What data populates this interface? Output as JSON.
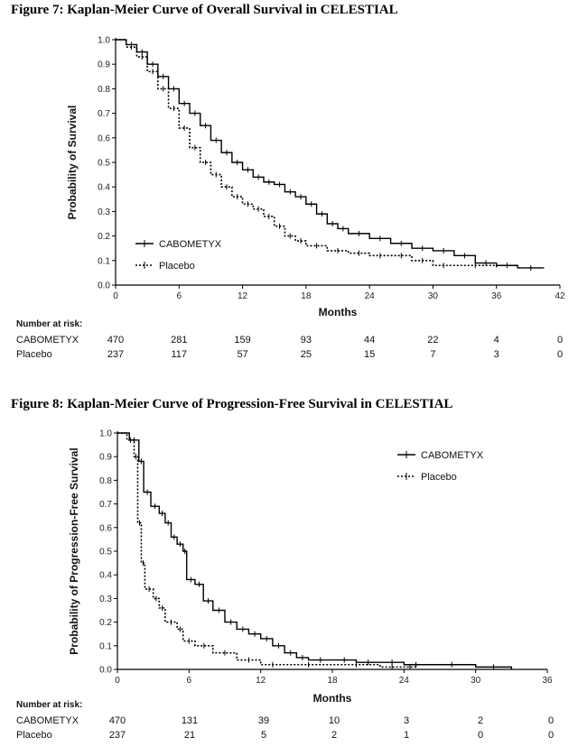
{
  "chart_data": [
    {
      "type": "line",
      "title": "Figure 7:  Kaplan-Meier Curve of Overall Survival in CELESTIAL",
      "xlabel": "Months",
      "ylabel": "Probability of Survival",
      "xlim": [
        0,
        42
      ],
      "ylim": [
        0,
        1.0
      ],
      "xticks": [
        "0",
        "6",
        "12",
        "18",
        "24",
        "30",
        "36",
        "42"
      ],
      "yticks": [
        "0.0",
        "0.1",
        "0.2",
        "0.3",
        "0.4",
        "0.5",
        "0.6",
        "0.7",
        "0.8",
        "0.9",
        "1.0"
      ],
      "legend": [
        "CABOMETYX",
        "Placebo"
      ],
      "series": [
        {
          "name": "CABOMETYX",
          "style": "solid",
          "x": [
            0,
            1,
            2,
            3,
            4,
            5,
            6,
            7,
            8,
            9,
            10,
            11,
            12,
            13,
            14,
            15,
            16,
            17,
            18,
            19,
            20,
            21,
            22,
            24,
            26,
            28,
            30,
            32,
            34,
            36,
            38,
            40.5
          ],
          "y": [
            1.0,
            0.98,
            0.95,
            0.9,
            0.85,
            0.8,
            0.74,
            0.7,
            0.65,
            0.59,
            0.54,
            0.5,
            0.47,
            0.44,
            0.42,
            0.41,
            0.38,
            0.36,
            0.33,
            0.29,
            0.25,
            0.23,
            0.21,
            0.19,
            0.17,
            0.15,
            0.14,
            0.12,
            0.09,
            0.08,
            0.07,
            0.07
          ]
        },
        {
          "name": "Placebo",
          "style": "dotted",
          "x": [
            0,
            1,
            2,
            3,
            4,
            5,
            6,
            7,
            8,
            9,
            10,
            11,
            12,
            13,
            14,
            15,
            16,
            17,
            18,
            20,
            22,
            24,
            26,
            28,
            30,
            32,
            36
          ],
          "y": [
            1.0,
            0.97,
            0.93,
            0.87,
            0.8,
            0.72,
            0.64,
            0.56,
            0.5,
            0.45,
            0.4,
            0.36,
            0.33,
            0.31,
            0.28,
            0.24,
            0.2,
            0.18,
            0.16,
            0.14,
            0.13,
            0.12,
            0.12,
            0.1,
            0.08,
            0.08,
            0.07
          ]
        }
      ],
      "risk_table": {
        "header": "Number at risk:",
        "times": [
          0,
          6,
          12,
          18,
          24,
          30,
          36,
          42
        ],
        "rows": [
          {
            "label": "CABOMETYX",
            "values": [
              "470",
              "281",
              "159",
              "93",
              "44",
              "22",
              "4",
              "0"
            ]
          },
          {
            "label": "Placebo",
            "values": [
              "237",
              "117",
              "57",
              "25",
              "15",
              "7",
              "3",
              "0"
            ]
          }
        ]
      }
    },
    {
      "type": "line",
      "title": "Figure 8:  Kaplan-Meier Curve of Progression-Free Survival in CELESTIAL",
      "xlabel": "Months",
      "ylabel": "Probability of Progression-Free Survival",
      "xlim": [
        0,
        36
      ],
      "ylim": [
        0,
        1.0
      ],
      "xticks": [
        "0",
        "6",
        "12",
        "18",
        "24",
        "30",
        "36"
      ],
      "yticks": [
        "0.0",
        "0.1",
        "0.2",
        "0.3",
        "0.4",
        "0.5",
        "0.6",
        "0.7",
        "0.8",
        "0.9",
        "1.0"
      ],
      "legend": [
        "CABOMETYX",
        "Placebo"
      ],
      "series": [
        {
          "name": "CABOMETYX",
          "style": "solid",
          "x": [
            0,
            1,
            1.8,
            2.2,
            2.8,
            3.5,
            4,
            4.5,
            5,
            5.5,
            5.8,
            6.5,
            7.2,
            8,
            9,
            10,
            11,
            12,
            13,
            14,
            15,
            16,
            18,
            20,
            22,
            24,
            26,
            30,
            33
          ],
          "y": [
            1.0,
            0.97,
            0.88,
            0.75,
            0.69,
            0.66,
            0.62,
            0.56,
            0.53,
            0.5,
            0.38,
            0.36,
            0.29,
            0.25,
            0.2,
            0.17,
            0.15,
            0.13,
            0.1,
            0.07,
            0.05,
            0.04,
            0.04,
            0.03,
            0.03,
            0.02,
            0.02,
            0.01,
            0.0
          ]
        },
        {
          "name": "Placebo",
          "style": "dotted",
          "x": [
            0,
            0.8,
            1.4,
            1.7,
            2.0,
            2.3,
            3.0,
            3.5,
            4.0,
            5.0,
            5.5,
            6.5,
            8,
            10,
            12,
            14,
            18,
            22,
            24,
            25
          ],
          "y": [
            1.0,
            0.97,
            0.9,
            0.62,
            0.45,
            0.34,
            0.3,
            0.26,
            0.2,
            0.17,
            0.12,
            0.1,
            0.07,
            0.04,
            0.02,
            0.02,
            0.02,
            0.01,
            0.01,
            0.0
          ]
        }
      ],
      "risk_table": {
        "header": "Number at risk:",
        "times": [
          0,
          6,
          12,
          18,
          24,
          30,
          36
        ],
        "rows": [
          {
            "label": "CABOMETYX",
            "values": [
              "470",
              "131",
              "39",
              "10",
              "3",
              "2",
              "0"
            ]
          },
          {
            "label": "Placebo",
            "values": [
              "237",
              "21",
              "5",
              "2",
              "1",
              "0",
              "0"
            ]
          }
        ]
      }
    }
  ]
}
